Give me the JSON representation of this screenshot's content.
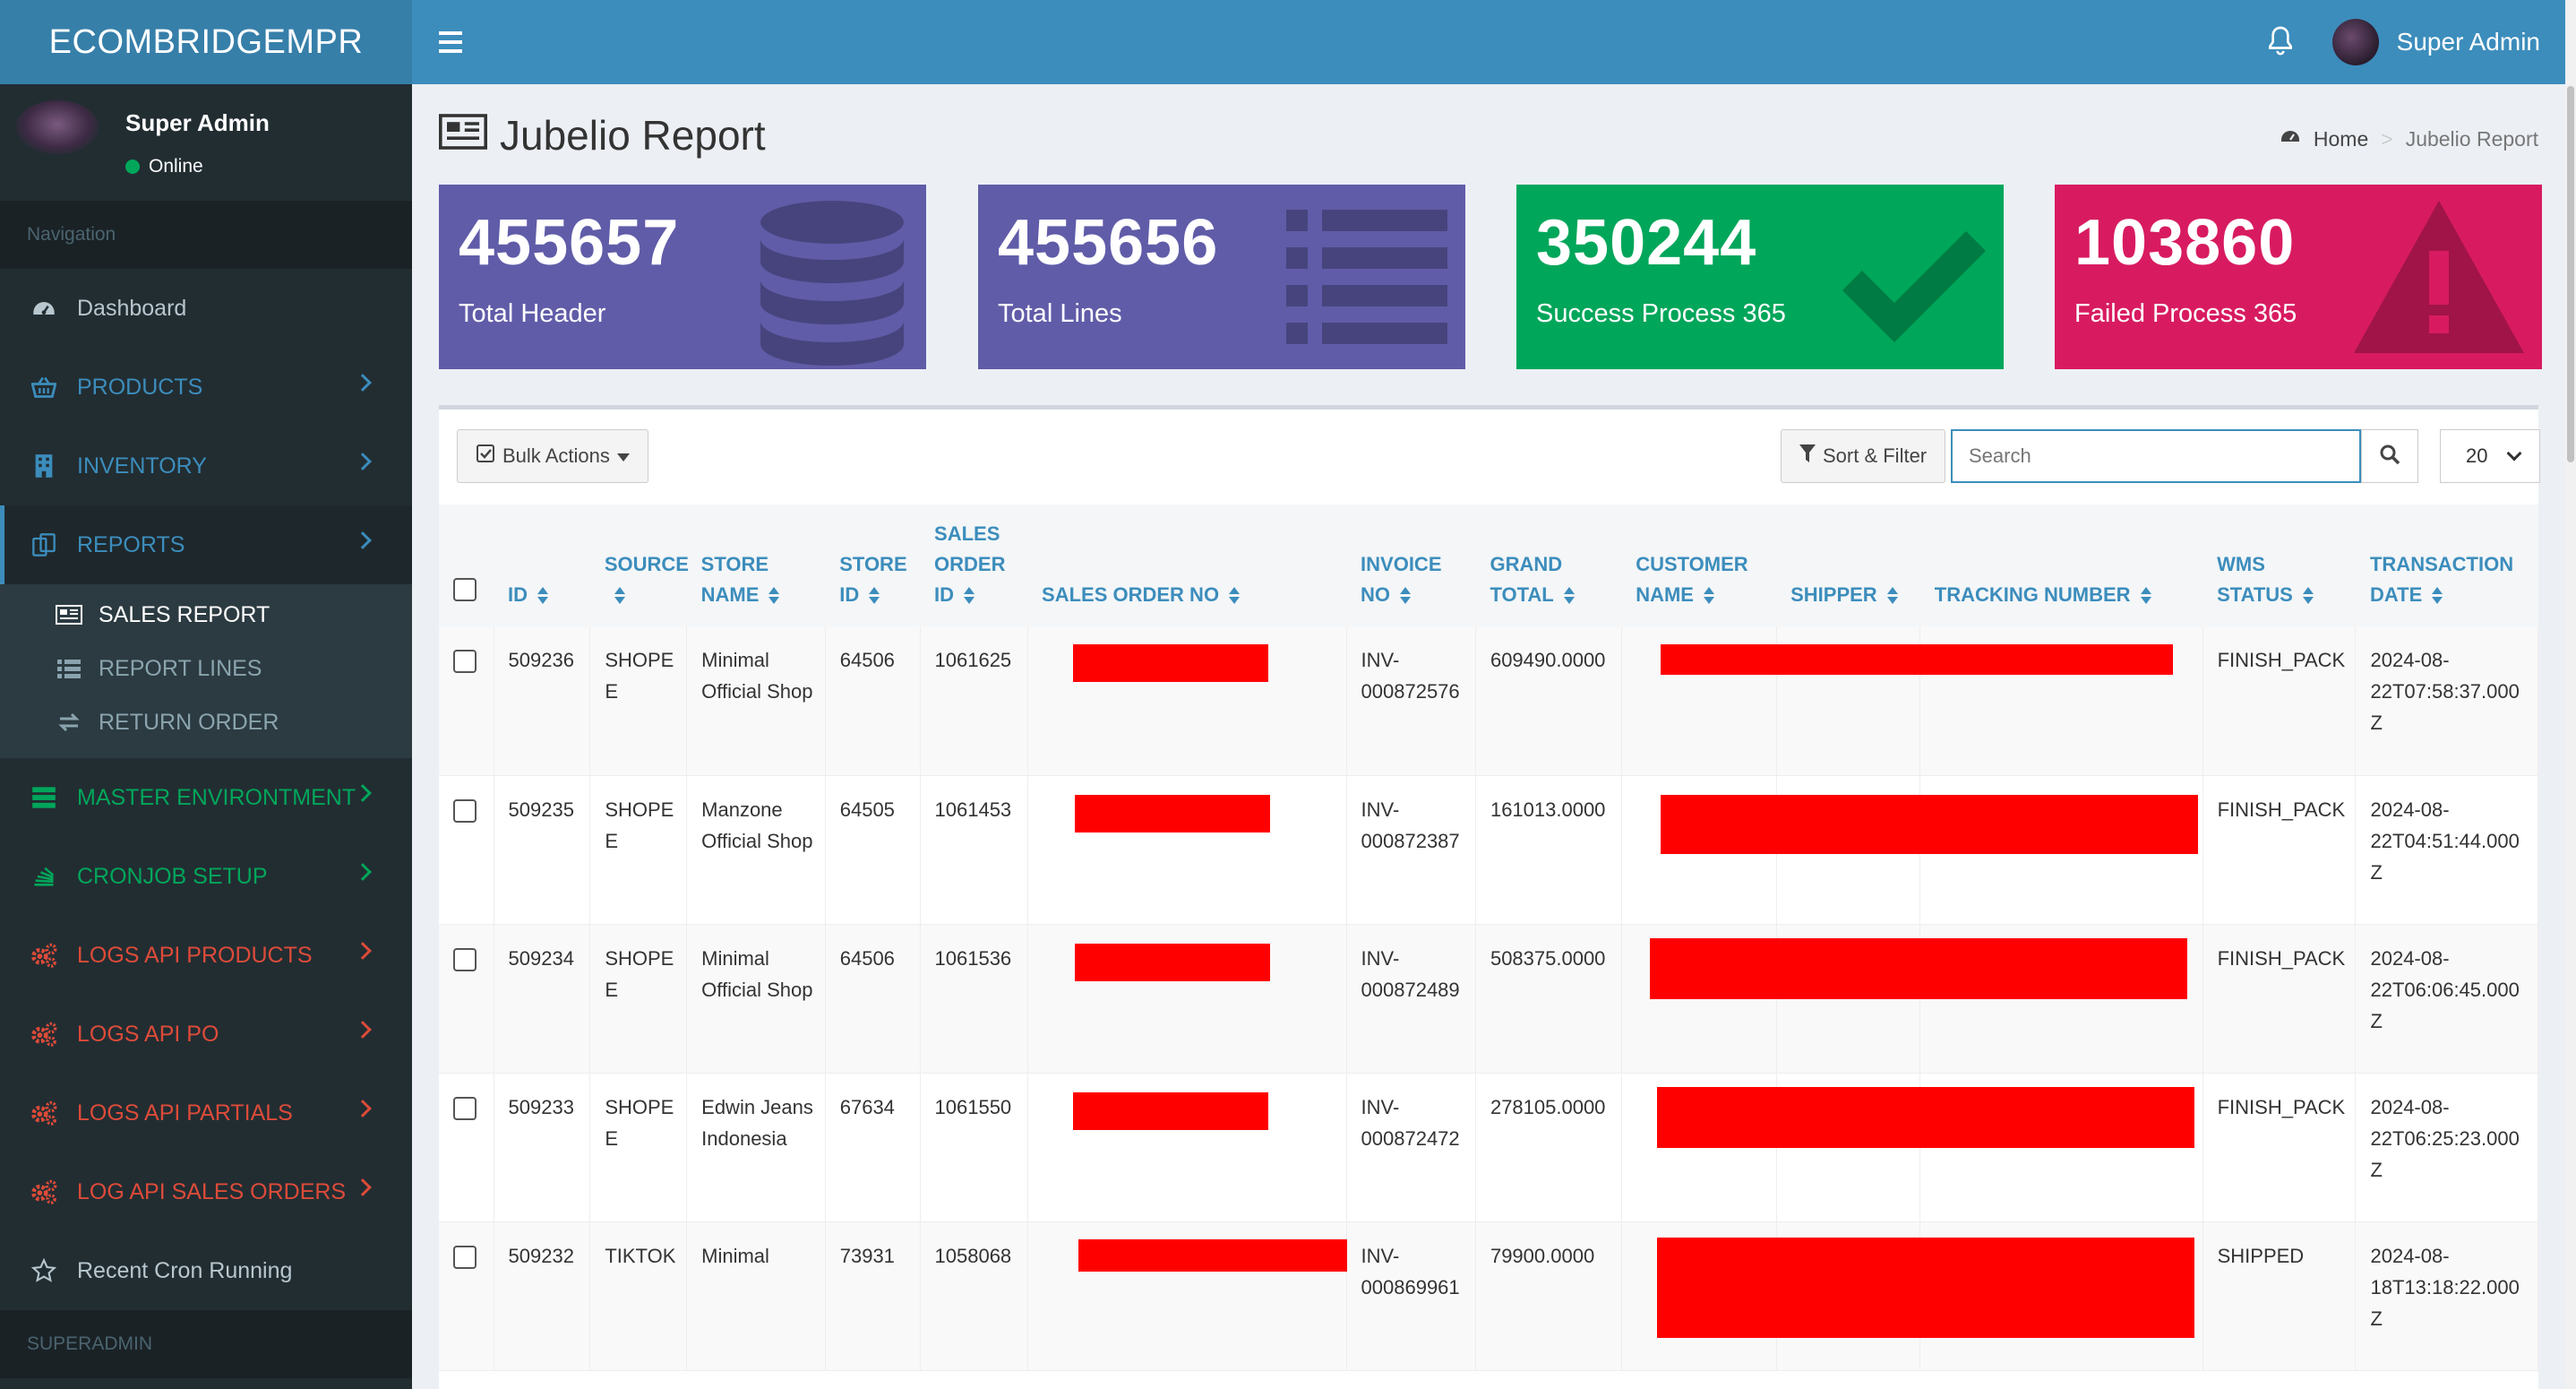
{
  "app": {
    "logo_text": "ECOMBRIDGEMPR",
    "admin_name": "Super Admin"
  },
  "sidebar": {
    "user_name": "Super Admin",
    "status": "Online",
    "nav_header": "Navigation",
    "items": [
      {
        "label": "Dashboard",
        "icon": "dashboard-icon"
      },
      {
        "label": "PRODUCTS",
        "icon": "basket-icon"
      },
      {
        "label": "INVENTORY",
        "icon": "building-icon"
      },
      {
        "label": "REPORTS",
        "icon": "copy-icon"
      },
      {
        "label": "MASTER ENVIRONTMENT",
        "icon": "server-icon"
      },
      {
        "label": "CRONJOB SETUP",
        "icon": "stack-icon"
      },
      {
        "label": "LOGS API PRODUCTS",
        "icon": "cogs-icon"
      },
      {
        "label": "LOGS API PO",
        "icon": "cogs-icon"
      },
      {
        "label": "LOGS API PARTIALS",
        "icon": "cogs-icon"
      },
      {
        "label": "LOG API SALES ORDERS",
        "icon": "cogs-icon"
      },
      {
        "label": "Recent Cron Running",
        "icon": "star-icon"
      }
    ],
    "reports_sub": [
      {
        "label": "SALES REPORT",
        "icon": "newspaper-icon"
      },
      {
        "label": "REPORT LINES",
        "icon": "list-icon"
      },
      {
        "label": "RETURN ORDER",
        "icon": "exchange-icon"
      }
    ],
    "superadmin_header": "SUPERADMIN"
  },
  "page": {
    "title": "Jubelio Report",
    "breadcrumb": {
      "home": "Home",
      "current": "Jubelio Report"
    }
  },
  "stats": [
    {
      "value": "455657",
      "label": "Total Header",
      "color": "#605ca8",
      "icon": "database-icon"
    },
    {
      "value": "455656",
      "label": "Total Lines",
      "color": "#605ca8",
      "icon": "list-icon"
    },
    {
      "value": "350244",
      "label": "Success Process 365",
      "color": "#00a65a",
      "icon": "check-icon"
    },
    {
      "value": "103860",
      "label": "Failed Process 365",
      "color": "#d81b60",
      "icon": "warning-icon"
    }
  ],
  "toolbar": {
    "bulk_actions": "Bulk Actions",
    "sort_filter": "Sort & Filter",
    "search_placeholder": "Search",
    "page_size": "20"
  },
  "table": {
    "headers": {
      "id": "ID",
      "source": "SOURCE",
      "store_name_1": "STORE",
      "store_name_2": "NAME",
      "store_id_1": "STORE",
      "store_id_2": "ID",
      "sales_order_id_1": "SALES",
      "sales_order_id_2": "ORDER",
      "sales_order_id_3": "ID",
      "sales_order_no": "SALES ORDER NO",
      "invoice_1": "INVOICE",
      "invoice_2": "NO",
      "grand_1": "GRAND",
      "grand_2": "TOTAL",
      "customer_1": "CUSTOMER",
      "customer_2": "NAME",
      "shipper": "SHIPPER",
      "tracking": "TRACKING NUMBER",
      "wms_1": "WMS",
      "wms_2": "STATUS",
      "trx_1": "TRANSACTION",
      "trx_2": "DATE"
    },
    "rows": [
      {
        "id": "509236",
        "source": "SHOPEE",
        "store_name": "Minimal Official Shop",
        "store_id": "64506",
        "so_id": "1061625",
        "invoice": "INV-000872576",
        "grand_total": "609490.0000",
        "wms_status": "FINISH_PACK",
        "trx_date": "2024-08-22T07:58:37.000Z"
      },
      {
        "id": "509235",
        "source": "SHOPEE",
        "store_name": "Manzone Official Shop",
        "store_id": "64505",
        "so_id": "1061453",
        "invoice": "INV-000872387",
        "grand_total": "161013.0000",
        "wms_status": "FINISH_PACK",
        "trx_date": "2024-08-22T04:51:44.000Z"
      },
      {
        "id": "509234",
        "source": "SHOPEE",
        "store_name": "Minimal Official Shop",
        "store_id": "64506",
        "so_id": "1061536",
        "invoice": "INV-000872489",
        "grand_total": "508375.0000",
        "wms_status": "FINISH_PACK",
        "trx_date": "2024-08-22T06:06:45.000Z"
      },
      {
        "id": "509233",
        "source": "SHOPEE",
        "store_name": "Edwin Jeans Indonesia",
        "store_id": "67634",
        "so_id": "1061550",
        "invoice": "INV-000872472",
        "grand_total": "278105.0000",
        "wms_status": "FINISH_PACK",
        "trx_date": "2024-08-22T06:25:23.000Z"
      },
      {
        "id": "509232",
        "source": "TIKTOK",
        "store_name": "Minimal",
        "store_id": "73931",
        "so_id": "1058068",
        "invoice": "INV-000869961",
        "grand_total": "79900.0000",
        "wms_status": "SHIPPED",
        "trx_date": "2024-08-18T13:18:22.000Z"
      }
    ]
  }
}
